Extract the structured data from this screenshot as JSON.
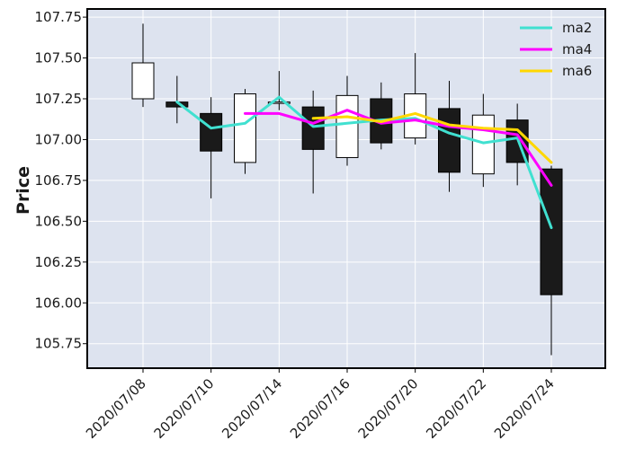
{
  "chart_data": {
    "type": "candlestick",
    "title": "",
    "xlabel": "",
    "ylabel": "Price",
    "ylim": [
      105.6,
      107.8
    ],
    "yticks": [
      105.75,
      106.0,
      106.25,
      106.5,
      106.75,
      107.0,
      107.25,
      107.5,
      107.75
    ],
    "ytick_labels": [
      "105.75",
      "106.00",
      "106.25",
      "106.50",
      "106.75",
      "107.00",
      "107.25",
      "107.50",
      "107.75"
    ],
    "xtick_labels": [
      "2020/07/08",
      "2020/07/10",
      "2020/07/14",
      "2020/07/16",
      "2020/07/20",
      "2020/07/22",
      "2020/07/24"
    ],
    "xtick_positions": [
      0,
      2,
      4,
      6,
      8,
      10,
      12
    ],
    "candles": [
      {
        "index": 0,
        "open": 107.25,
        "high": 107.71,
        "low": 107.2,
        "close": 107.47
      },
      {
        "index": 1,
        "open": 107.23,
        "high": 107.39,
        "low": 107.1,
        "close": 107.2
      },
      {
        "index": 2,
        "open": 107.16,
        "high": 107.26,
        "low": 106.64,
        "close": 106.93
      },
      {
        "index": 3,
        "open": 106.86,
        "high": 107.31,
        "low": 106.79,
        "close": 107.28
      },
      {
        "index": 4,
        "open": 107.23,
        "high": 107.42,
        "low": 107.18,
        "close": 107.23
      },
      {
        "index": 5,
        "open": 107.2,
        "high": 107.3,
        "low": 106.67,
        "close": 106.94
      },
      {
        "index": 6,
        "open": 106.89,
        "high": 107.39,
        "low": 106.84,
        "close": 107.27
      },
      {
        "index": 7,
        "open": 107.25,
        "high": 107.35,
        "low": 106.94,
        "close": 106.98
      },
      {
        "index": 8,
        "open": 107.01,
        "high": 107.53,
        "low": 106.97,
        "close": 107.28
      },
      {
        "index": 9,
        "open": 107.19,
        "high": 107.36,
        "low": 106.68,
        "close": 106.8
      },
      {
        "index": 10,
        "open": 106.79,
        "high": 107.28,
        "low": 106.71,
        "close": 107.15
      },
      {
        "index": 11,
        "open": 107.12,
        "high": 107.22,
        "low": 106.72,
        "close": 106.86
      },
      {
        "index": 12,
        "open": 106.82,
        "high": 106.84,
        "low": 105.68,
        "close": 106.05
      }
    ],
    "series": [
      {
        "name": "ma2",
        "color": "#40e0d0",
        "start": 1,
        "values": [
          107.23,
          107.07,
          107.1,
          107.26,
          107.08,
          107.1,
          107.12,
          107.13,
          107.04,
          106.98,
          107.01,
          106.46
        ]
      },
      {
        "name": "ma4",
        "color": "#ff00ff",
        "start": 3,
        "values": [
          107.16,
          107.16,
          107.1,
          107.18,
          107.1,
          107.12,
          107.08,
          107.06,
          107.03,
          106.72
        ]
      },
      {
        "name": "ma6",
        "color": "#ffd700",
        "start": 5,
        "values": [
          107.13,
          107.14,
          107.11,
          107.16,
          107.09,
          107.07,
          107.06,
          106.86
        ]
      }
    ],
    "legend": {
      "position": "top-right",
      "entries": [
        "ma2",
        "ma4",
        "ma6"
      ]
    },
    "grid": true
  }
}
